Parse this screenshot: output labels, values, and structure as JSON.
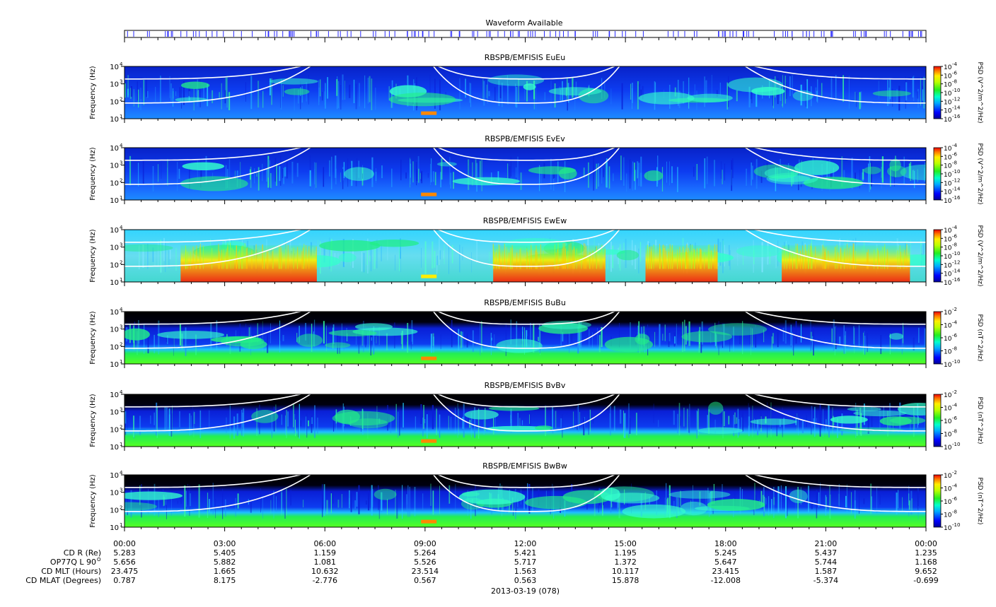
{
  "waveform": {
    "title": "Waveform Available",
    "color": "#2a2aff"
  },
  "colors": {
    "background_black": "#000000",
    "dense_blue": "#0a1fd6",
    "field_blue": "#0d4dff",
    "curve_white": "#ffffff"
  },
  "chart_data": [
    {
      "type": "heatmap",
      "title": "RBSPB/EMFISIS  EuEu",
      "ylabel": "Frequency (Hz)",
      "yscale": "log",
      "yticks": [
        "10",
        "10",
        "10",
        "10"
      ],
      "ytick_exponents": [
        "1",
        "2",
        "3",
        "4"
      ],
      "ylim": [
        10,
        10000
      ],
      "colorbar_label": "PSD (V^2/m^2/Hz)",
      "colorbar_ticks": [
        "10",
        "10",
        "10",
        "10",
        "10",
        "10",
        "10"
      ],
      "colorbar_exponents": [
        "-4",
        "-6",
        "-8",
        "-10",
        "-12",
        "-14",
        "-16"
      ],
      "zlim": [
        1e-16,
        0.0001
      ],
      "background": "blue"
    },
    {
      "type": "heatmap",
      "title": "RBSPB/EMFISIS  EvEv",
      "ylabel": "Frequency (Hz)",
      "yscale": "log",
      "yticks": [
        "10",
        "10",
        "10",
        "10"
      ],
      "ytick_exponents": [
        "1",
        "2",
        "3",
        "4"
      ],
      "ylim": [
        10,
        10000
      ],
      "colorbar_label": "PSD (V^2/m^2/Hz)",
      "colorbar_ticks": [
        "10",
        "10",
        "10",
        "10",
        "10",
        "10",
        "10"
      ],
      "colorbar_exponents": [
        "-4",
        "-6",
        "-8",
        "-10",
        "-12",
        "-14",
        "-16"
      ],
      "zlim": [
        1e-16,
        0.0001
      ],
      "background": "blue"
    },
    {
      "type": "heatmap",
      "title": "RBSPB/EMFISIS  EwEw",
      "ylabel": "Frequency (Hz)",
      "yscale": "log",
      "yticks": [
        "10",
        "10",
        "10",
        "10"
      ],
      "ytick_exponents": [
        "1",
        "2",
        "3",
        "4"
      ],
      "ylim": [
        10,
        10000
      ],
      "colorbar_label": "PSD (V^2/m^2/Hz)",
      "colorbar_ticks": [
        "10",
        "10",
        "10",
        "10",
        "10",
        "10",
        "10"
      ],
      "colorbar_exponents": [
        "-4",
        "-6",
        "-8",
        "-10",
        "-12",
        "-14",
        "-16"
      ],
      "zlim": [
        1e-16,
        0.0001
      ],
      "background": "cyan"
    },
    {
      "type": "heatmap",
      "title": "RBSPB/EMFISIS  BuBu",
      "ylabel": "Frequency (Hz)",
      "yscale": "log",
      "yticks": [
        "10",
        "10",
        "10",
        "10"
      ],
      "ytick_exponents": [
        "1",
        "2",
        "3",
        "4"
      ],
      "ylim": [
        10,
        10000
      ],
      "colorbar_label": "PSD (nT^2/Hz)",
      "colorbar_ticks": [
        "10",
        "10",
        "10",
        "10",
        "10"
      ],
      "colorbar_exponents": [
        "-2",
        "-4",
        "-6",
        "-8",
        "-10"
      ],
      "zlim": [
        1e-10,
        0.01
      ],
      "background": "black"
    },
    {
      "type": "heatmap",
      "title": "RBSPB/EMFISIS  BvBv",
      "ylabel": "Frequency (Hz)",
      "yscale": "log",
      "yticks": [
        "10",
        "10",
        "10",
        "10"
      ],
      "ytick_exponents": [
        "1",
        "2",
        "3",
        "4"
      ],
      "ylim": [
        10,
        10000
      ],
      "colorbar_label": "PSD (nT^2/Hz)",
      "colorbar_ticks": [
        "10",
        "10",
        "10",
        "10",
        "10"
      ],
      "colorbar_exponents": [
        "-2",
        "-4",
        "-6",
        "-8",
        "-10"
      ],
      "zlim": [
        1e-10,
        0.01
      ],
      "background": "black"
    },
    {
      "type": "heatmap",
      "title": "RBSPB/EMFISIS  BwBw",
      "ylabel": "Frequency (Hz)",
      "yscale": "log",
      "yticks": [
        "10",
        "10",
        "10",
        "10"
      ],
      "ytick_exponents": [
        "1",
        "2",
        "3",
        "4"
      ],
      "ylim": [
        10,
        10000
      ],
      "colorbar_label": "PSD (nT^2/Hz)",
      "colorbar_ticks": [
        "10",
        "10",
        "10",
        "10",
        "10"
      ],
      "colorbar_exponents": [
        "-2",
        "-4",
        "-6",
        "-8",
        "-10"
      ],
      "zlim": [
        1e-10,
        0.01
      ],
      "background": "black"
    }
  ],
  "time_axis": {
    "ticks": [
      "00:00",
      "03:00",
      "06:00",
      "09:00",
      "12:00",
      "15:00",
      "18:00",
      "21:00",
      "00:00"
    ],
    "date_label": "2013-03-19 (078)"
  },
  "ephemeris": {
    "rows": [
      {
        "label": "CD R (Re)",
        "values": [
          "5.283",
          "5.405",
          "1.159",
          "5.264",
          "5.421",
          "1.195",
          "5.245",
          "5.437",
          "1.235"
        ]
      },
      {
        "label": "OP77Q L 90",
        "label_sup": "O",
        "values": [
          "5.656",
          "5.882",
          "1.081",
          "5.526",
          "5.717",
          "1.372",
          "5.647",
          "5.744",
          "1.168"
        ]
      },
      {
        "label": "CD MLT (Hours)",
        "values": [
          "23.475",
          "1.665",
          "10.632",
          "23.514",
          "1.563",
          "10.117",
          "23.415",
          "1.587",
          "9.652"
        ]
      },
      {
        "label": "CD MLAT (Degrees)",
        "values": [
          "0.787",
          "8.175",
          "-2.776",
          "0.567",
          "0.563",
          "15.878",
          "-12.008",
          "-5.374",
          "-0.699"
        ]
      }
    ]
  }
}
